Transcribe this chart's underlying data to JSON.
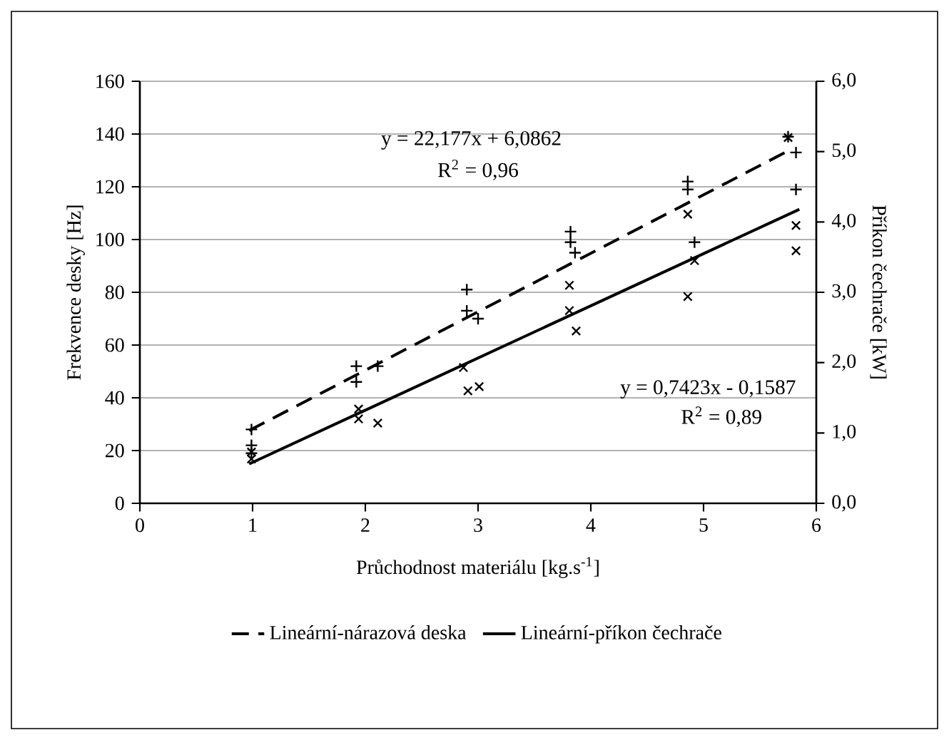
{
  "chart_data": {
    "type": "scatter",
    "xlabel": "Průchodnost materiálu [kg.s$^{-1}$]",
    "ylabel": "Frekvence desky [Hz]",
    "y2label": "Příkon čechrače [kW]",
    "xlim": [
      0,
      6
    ],
    "xticks": [
      0,
      1,
      2,
      3,
      4,
      5,
      6
    ],
    "ylim": [
      0,
      160
    ],
    "yticks": [
      0,
      20,
      40,
      60,
      80,
      100,
      120,
      140,
      160
    ],
    "y2lim": [
      0,
      6
    ],
    "y2ticks": [
      {
        "value": 0,
        "label": "0,0"
      },
      {
        "value": 1,
        "label": "1,0"
      },
      {
        "value": 2,
        "label": "2,0"
      },
      {
        "value": 3,
        "label": "3,0"
      },
      {
        "value": 4,
        "label": "4,0"
      },
      {
        "value": 5,
        "label": "5,0"
      },
      {
        "value": 6,
        "label": "6,0"
      }
    ],
    "grid": "y",
    "legend": "bottom",
    "series": [
      {
        "marker": "plus",
        "color": "#000000",
        "axis": "y",
        "x": [
          0.99,
          0.99,
          0.99,
          1.92,
          1.92,
          2.11,
          2.9,
          2.9,
          3.0,
          3.82,
          3.82,
          3.86,
          4.86,
          4.86,
          4.92,
          5.75,
          5.82,
          5.82
        ],
        "values": [
          28,
          22,
          19,
          52,
          46,
          52,
          81,
          73,
          70,
          103,
          99,
          95,
          122,
          119,
          99,
          139,
          133,
          119
        ]
      },
      {
        "marker": "cross",
        "color": "#000000",
        "axis": "y2",
        "x": [
          0.99,
          0.99,
          1.94,
          1.94,
          2.11,
          2.87,
          2.91,
          3.01,
          3.81,
          3.81,
          3.87,
          4.86,
          4.86,
          4.92,
          5.75,
          5.82,
          5.82
        ],
        "values": [
          0.73,
          0.63,
          1.34,
          1.2,
          1.14,
          1.93,
          1.6,
          1.66,
          3.1,
          2.74,
          2.45,
          4.11,
          2.94,
          3.45,
          5.2,
          3.95,
          3.59
        ]
      },
      {
        "type": "line",
        "name": "Lineární-nárazová deska",
        "line_style": "dashed",
        "marker": "none",
        "color": "#000000",
        "axis": "y",
        "x": [
          0.97,
          5.75
        ],
        "values": [
          27.6,
          133.6
        ]
      },
      {
        "type": "line",
        "name": "Lineární-příkon čechrače",
        "line_style": "solid",
        "marker": "none",
        "color": "#000000",
        "axis": "y2",
        "x": [
          0.97,
          5.85
        ],
        "values": [
          0.56,
          4.18
        ]
      }
    ],
    "annotations": [
      "y = 22,177x + 6,0862",
      "R$^{2}$ = 0,96",
      "y = 0,7423x - 0,1587",
      "R$^{2}$ = 0,89"
    ]
  }
}
